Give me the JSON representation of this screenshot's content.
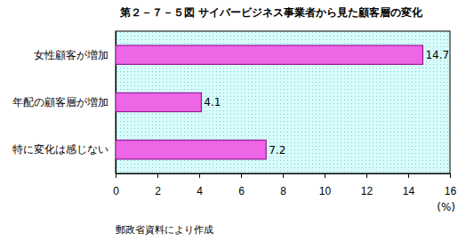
{
  "chart_data": {
    "type": "bar",
    "title": "第２－７－５図 サイバービジネス事業者から見た顧客層の変化",
    "categories": [
      "女性顧客が増加",
      "年配の顧客層が増加",
      "特に変化は感じない"
    ],
    "values": [
      14.7,
      4.1,
      7.2
    ],
    "color": "#ee66e6",
    "orientation": "horizontal",
    "data_labels": true,
    "grid": false,
    "xlim": [
      0,
      16
    ],
    "xticks": [
      0,
      2,
      4,
      6,
      8,
      10,
      12,
      14,
      16
    ],
    "xlabel": "(%)",
    "note": "郵政省資料により作成"
  }
}
